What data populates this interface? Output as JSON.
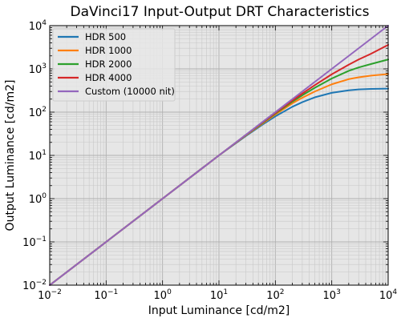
{
  "chart_data": {
    "type": "line",
    "title": "DaVinci17 Input-Output DRT Characteristics",
    "xlabel": "Input Luminance [cd/m2]",
    "ylabel": "Output Luminance [cd/m2]",
    "xscale": "log",
    "yscale": "log",
    "xlim": [
      0.01,
      10000
    ],
    "ylim": [
      0.01,
      10000
    ],
    "xticks": [
      {
        "value": 0.01,
        "base": "10",
        "exp": "−2"
      },
      {
        "value": 0.1,
        "base": "10",
        "exp": "−1"
      },
      {
        "value": 1,
        "base": "10",
        "exp": "0"
      },
      {
        "value": 10,
        "base": "10",
        "exp": "1"
      },
      {
        "value": 100,
        "base": "10",
        "exp": "2"
      },
      {
        "value": 1000,
        "base": "10",
        "exp": "3"
      },
      {
        "value": 10000,
        "base": "10",
        "exp": "4"
      }
    ],
    "yticks": [
      {
        "value": 0.01,
        "base": "10",
        "exp": "−2"
      },
      {
        "value": 0.1,
        "base": "10",
        "exp": "−1"
      },
      {
        "value": 1,
        "base": "10",
        "exp": "0"
      },
      {
        "value": 10,
        "base": "10",
        "exp": "1"
      },
      {
        "value": 100,
        "base": "10",
        "exp": "2"
      },
      {
        "value": 1000,
        "base": "10",
        "exp": "3"
      },
      {
        "value": 10000,
        "base": "10",
        "exp": "4"
      }
    ],
    "grid": true,
    "legend_position": "top-left",
    "x": [
      0.01,
      0.1,
      1,
      10,
      30,
      60,
      100,
      200,
      300,
      500,
      1000,
      2000,
      3000,
      5000,
      10000
    ],
    "series": [
      {
        "name": "HDR 500",
        "color": "#1f77b4",
        "values": [
          0.01,
          0.1,
          1,
          10,
          28,
          52,
          80,
          133,
          170,
          220,
          280,
          320,
          335,
          345,
          350
        ]
      },
      {
        "name": "HDR 1000",
        "color": "#ff7f0e",
        "values": [
          0.01,
          0.1,
          1,
          10,
          29,
          55,
          88,
          160,
          215,
          300,
          440,
          580,
          640,
          700,
          760
        ]
      },
      {
        "name": "HDR 2000",
        "color": "#2ca02c",
        "values": [
          0.01,
          0.1,
          1,
          10,
          29.5,
          57,
          93,
          175,
          245,
          365,
          600,
          900,
          1080,
          1300,
          1650
        ]
      },
      {
        "name": "HDR 4000",
        "color": "#d62728",
        "values": [
          0.01,
          0.1,
          1,
          10,
          29.8,
          58.5,
          96,
          185,
          268,
          420,
          750,
          1250,
          1650,
          2250,
          3600
        ]
      },
      {
        "name": "Custom (10000 nit)",
        "color": "#9467bd",
        "values": [
          0.01,
          0.1,
          1,
          10,
          30,
          60,
          100,
          200,
          300,
          500,
          1000,
          2000,
          3000,
          5000,
          10000
        ]
      }
    ]
  }
}
